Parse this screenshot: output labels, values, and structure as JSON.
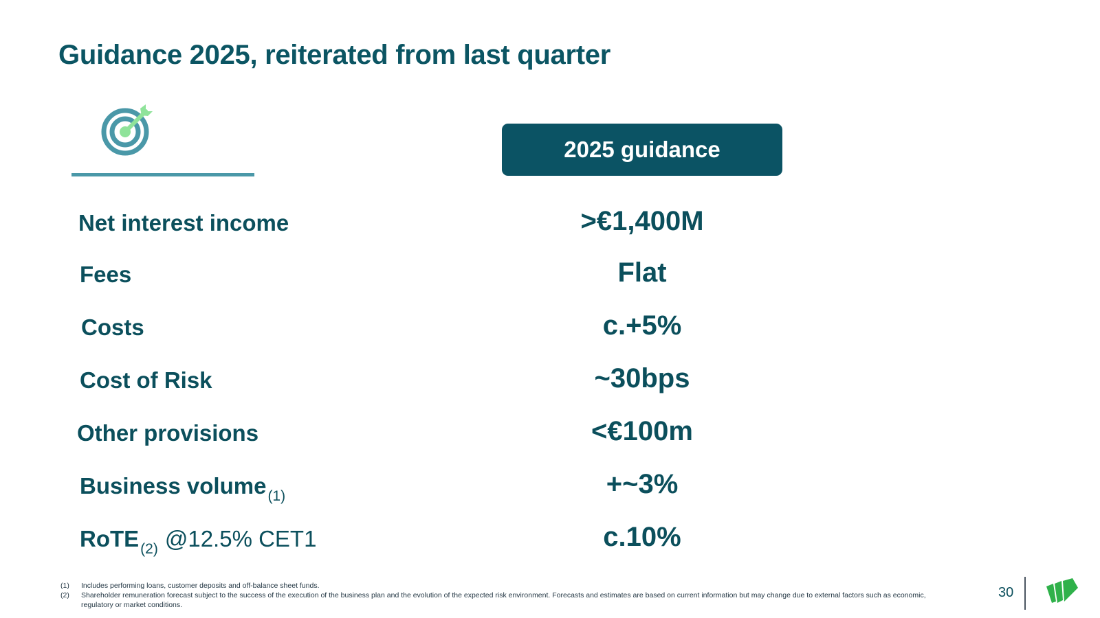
{
  "title": "Guidance 2025, reiterated from last quarter",
  "icons": {
    "target": "target-arrow-icon",
    "logo": "bank-logo-icon"
  },
  "colors": {
    "brand_dark": "#0b5364",
    "accent_teal": "#4a98a8",
    "accent_green": "#8fe39a",
    "logo_green": "#2fb14a"
  },
  "table": {
    "header": "2025 guidance",
    "rows": [
      {
        "label": "Net interest income",
        "sub": "",
        "suffix": "",
        "value": ">€1,400M"
      },
      {
        "label": "Fees",
        "sub": "",
        "suffix": "",
        "value": "Flat"
      },
      {
        "label": "Costs",
        "sub": "",
        "suffix": "",
        "value": "c.+5%"
      },
      {
        "label": "Cost of Risk",
        "sub": "",
        "suffix": "",
        "value": "~30bps"
      },
      {
        "label": "Other provisions",
        "sub": "",
        "suffix": "",
        "value": "<€100m"
      },
      {
        "label": "Business volume",
        "sub": "(1)",
        "suffix": "",
        "value": "+~3%"
      },
      {
        "label": "RoTE",
        "sub": "(2)",
        "suffix": "@12.5% CET1",
        "value": "c.10%"
      }
    ]
  },
  "footnotes": [
    {
      "num": "(1)",
      "text": "Includes performing loans, customer deposits and off-balance sheet funds."
    },
    {
      "num": "(2)",
      "text": "Shareholder remuneration forecast subject to the success of the execution of the business plan and the evolution of the expected risk environment. Forecasts and estimates are based on current information but may change due to external factors such as economic, regulatory or market conditions."
    }
  ],
  "page_number": "30"
}
